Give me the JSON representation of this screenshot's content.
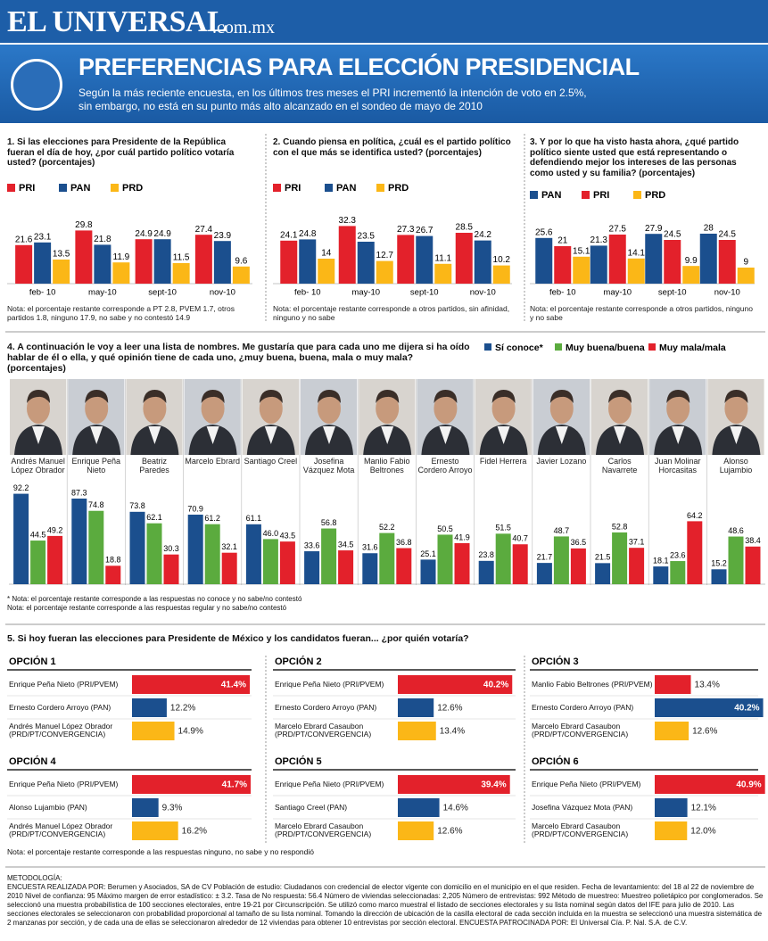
{
  "header": {
    "logo": "EL UNIVERSAL",
    "logo_domain": ".com.mx",
    "title": "PREFERENCIAS PARA ELECCIÓN PRESIDENCIAL",
    "subtitle_lines": [
      "Según la más reciente encuesta, en los últimos tres meses el PRI incrementó la intención de voto en 2.5%,",
      "sin embargo, no está en su punto más alto alcanzado en el sondeo de mayo de 2010"
    ]
  },
  "chart_data": [
    {
      "type": "bar",
      "title": "1. Si las elecciones para Presidente de la República fueran el día de hoy, ¿por cuál partido político votaría usted? (porcentajes)",
      "categories": [
        "feb- 10",
        "may-10",
        "sept-10",
        "nov-10"
      ],
      "ylim": [
        0,
        35
      ],
      "series": [
        {
          "name": "PRI",
          "color": "#e3212b",
          "values": [
            21.6,
            29.8,
            24.9,
            27.4
          ]
        },
        {
          "name": "PAN",
          "color": "#1b4f8e",
          "values": [
            23.1,
            21.8,
            24.9,
            23.9
          ]
        },
        {
          "name": "PRD",
          "color": "#fbb717",
          "values": [
            13.5,
            11.9,
            11.5,
            9.6
          ]
        }
      ],
      "note": "Nota: el porcentaje restante corresponde a PT 2.8, PVEM 1.7, otros partidos 1.8, ninguno 17.9, no sabe y no contestó 14.9"
    },
    {
      "type": "bar",
      "title": "2. Cuando piensa en política, ¿cuál es el partido político con el que más se identifica usted? (porcentajes)",
      "categories": [
        "feb- 10",
        "may-10",
        "sept-10",
        "nov-10"
      ],
      "ylim": [
        0,
        35
      ],
      "series": [
        {
          "name": "PRI",
          "color": "#e3212b",
          "values": [
            24.1,
            32.3,
            27.3,
            28.5
          ]
        },
        {
          "name": "PAN",
          "color": "#1b4f8e",
          "values": [
            24.8,
            23.5,
            26.7,
            24.2
          ]
        },
        {
          "name": "PRD",
          "color": "#fbb717",
          "values": [
            14,
            12.7,
            11.1,
            10.2
          ]
        }
      ],
      "note": "Nota: el porcentaje restante corresponde a otros partidos, sin afinidad, ninguno y no sabe"
    },
    {
      "type": "bar",
      "title": "3.  Y por lo que ha visto hasta ahora, ¿qué partido político siente usted que está representando o defendiendo mejor los intereses de las personas como usted y su familia? (porcentajes)",
      "categories": [
        "feb- 10",
        "may-10",
        "sept-10",
        "nov-10"
      ],
      "ylim": [
        0,
        35
      ],
      "series": [
        {
          "name": "PAN",
          "color": "#1b4f8e",
          "values": [
            25.6,
            21.3,
            27.9,
            28
          ]
        },
        {
          "name": "PRI",
          "color": "#e3212b",
          "values": [
            21,
            27.5,
            24.5,
            24.5
          ]
        },
        {
          "name": "PRD",
          "color": "#fbb717",
          "values": [
            15.1,
            14.1,
            9.9,
            9
          ]
        }
      ],
      "note": "Nota: el porcentaje restante corresponde a otros partidos, ninguno y no sabe"
    },
    {
      "type": "bar",
      "title": "4.  A continuación le voy a leer una lista de nombres. Me gustaría que para cada uno me dijera si ha oído hablar de él o ella, y qué opinión tiene de cada uno, ¿muy buena, buena, mala o muy mala? (porcentajes)",
      "categories": [
        "Andrés Manuel López Obrador",
        "Enrique Peña Nieto",
        "Beatriz Paredes",
        "Marcelo Ebrard",
        "Santiago Creel",
        "Josefina Vázquez Mota",
        "Manlio Fabio Beltrones",
        "Ernesto Cordero Arroyo",
        "Fidel Herrera",
        "Javier Lozano",
        "Carlos Navarrete",
        "Juan Molinar Horcasitas",
        "Alonso Lujambio"
      ],
      "ylim": [
        0,
        100
      ],
      "series": [
        {
          "name": "Sí conoce*",
          "color": "#1b4f8e",
          "values": [
            92.2,
            87.3,
            73.8,
            70.9,
            61.1,
            33.6,
            31.6,
            25.1,
            23.8,
            21.7,
            21.5,
            18.1,
            15.2
          ],
          "value_labels": [
            "92.2",
            "87.3",
            "73.8",
            "70.9",
            "61.1",
            "33.6",
            "31.6",
            "25.1",
            "23.8",
            "21.7",
            "21.5",
            "18.1",
            "15.2"
          ]
        },
        {
          "name": "Muy buena/buena",
          "color": "#5bab3e",
          "values": [
            44.5,
            74.8,
            62.1,
            61.2,
            46,
            56.8,
            52.2,
            50.5,
            51.5,
            48.7,
            52.8,
            23.6,
            48.6
          ],
          "value_labels": [
            "44.5",
            "74.8",
            "62.1",
            "61.2",
            "46.0",
            "56.8",
            "52.2",
            "50.5",
            "51.5",
            "48.7",
            "52.8",
            "23.6",
            "48.6"
          ]
        },
        {
          "name": "Muy mala/mala",
          "color": "#e3212b",
          "values": [
            49.2,
            18.8,
            30.3,
            32.1,
            43.5,
            34.5,
            36.8,
            41.9,
            40.7,
            36.5,
            37.1,
            64.2,
            38.4
          ],
          "value_labels": [
            "49.2",
            "18.8",
            "30.3",
            "32.1",
            "43.5",
            "34.5",
            "36.8",
            "41.9",
            "40.7",
            "36.5",
            "37.1",
            "64.2",
            "38.4"
          ]
        }
      ],
      "notes": [
        "* Nota: el porcentaje restante corresponde a las respuestas no conoce y no sabe/no contestó",
        "Nota: el porcentaje restante corresponde a las respuestas regular y no sabe/no contestó"
      ]
    },
    {
      "type": "hbar",
      "title": "OPCIÓN 1",
      "xlim": [
        0,
        42
      ],
      "categories": [
        "Enrique Peña Nieto (PRI/PVEM)",
        "Ernesto Cordero Arroyo (PAN)",
        "Andrés Manuel López Obrador (PRD/PT/CONVERGENCIA)"
      ],
      "values": [
        41.4,
        12.2,
        14.9
      ],
      "value_labels": [
        "41.4%",
        "12.2%",
        "14.9%"
      ],
      "colors": [
        "#e3212b",
        "#1b4f8e",
        "#fbb717"
      ]
    },
    {
      "type": "hbar",
      "title": "OPCIÓN 2",
      "xlim": [
        0,
        42
      ],
      "categories": [
        "Enrique Peña Nieto (PRI/PVEM)",
        "Ernesto Cordero Arroyo (PAN)",
        "Marcelo Ebrard Casaubon (PRD/PT/CONVERGENCIA)"
      ],
      "values": [
        40.2,
        12.6,
        13.4
      ],
      "value_labels": [
        "40.2%",
        "12.6%",
        "13.4%"
      ],
      "colors": [
        "#e3212b",
        "#1b4f8e",
        "#fbb717"
      ]
    },
    {
      "type": "hbar",
      "title": "OPCIÓN 3",
      "xlim": [
        0,
        42
      ],
      "categories": [
        "Manlio Fabio Beltrones (PRI/PVEM)",
        "Ernesto Cordero Arroyo (PAN)",
        "Marcelo Ebrard Casaubon (PRD/PT/CONVERGENCIA)"
      ],
      "values": [
        13.4,
        40.2,
        12.6
      ],
      "value_labels": [
        "13.4%",
        "40.2%",
        "12.6%"
      ],
      "colors": [
        "#e3212b",
        "#1b4f8e",
        "#fbb717"
      ]
    },
    {
      "type": "hbar",
      "title": "OPCIÓN 4",
      "xlim": [
        0,
        42
      ],
      "categories": [
        "Enrique Peña Nieto (PRI/PVEM)",
        "Alonso Lujambio (PAN)",
        "Andrés Manuel López Obrador (PRD/PT/CONVERGENCIA)"
      ],
      "values": [
        41.7,
        9.3,
        16.2
      ],
      "value_labels": [
        "41.7%",
        "9.3%",
        "16.2%"
      ],
      "colors": [
        "#e3212b",
        "#1b4f8e",
        "#fbb717"
      ]
    },
    {
      "type": "hbar",
      "title": "OPCIÓN 5",
      "xlim": [
        0,
        42
      ],
      "categories": [
        "Enrique Peña Nieto (PRI/PVEM)",
        "Santiago Creel (PAN)",
        "Marcelo Ebrard Casaubon (PRD/PT/CONVERGENCIA)"
      ],
      "values": [
        39.4,
        14.6,
        12.6
      ],
      "value_labels": [
        "39.4%",
        "14.6%",
        "12.6%"
      ],
      "colors": [
        "#e3212b",
        "#1b4f8e",
        "#fbb717"
      ]
    },
    {
      "type": "hbar",
      "title": "OPCIÓN 6",
      "xlim": [
        0,
        42
      ],
      "categories": [
        "Enrique Peña Nieto (PRI/PVEM)",
        "Josefina Vázquez Mota (PAN)",
        "Marcelo Ebrard Casaubon (PRD/PT/CONVERGENCIA)"
      ],
      "values": [
        40.9,
        12.1,
        12
      ],
      "value_labels": [
        "40.9%",
        "12.1%",
        "12.0%"
      ],
      "colors": [
        "#e3212b",
        "#1b4f8e",
        "#fbb717"
      ]
    }
  ],
  "section5": {
    "title": "5. Si hoy fueran las elecciones para Presidente de México y los candidatos fueran... ¿por quién votaría?",
    "note": "Nota: el porcentaje restante corresponde a las respuestas ninguno, no sabe y no respondió"
  },
  "methodology": {
    "title": "METODOLOGÍA:",
    "text": "ENCUESTA REALIZADA POR: Berumen y Asociados, SA de CV Población de estudio: Ciudadanos con credencial de elector vigente con domicilio en el municipio en el que residen. Fecha de levantamiento: del 18 al 22 de noviembre de 2010 Nivel de confianza: 95 Máximo margen de error estadístico: ± 3.2. Tasa de No respuesta: 56.4 Número de viviendas seleccionadas: 2,205 Número de entrevistas: 992 Método de muestreo: Muestreo polietápico por conglomerados. Se seleccionó una muestra probabilística de 100 secciones electorales, entre 19-21 por Circunscripción. Se utilizó como marco muestral el listado de secciones electorales y su lista nominal según datos del IFE para julio de 2010. Las secciones electorales se seleccionaron con probabilidad proporcional al tamaño de su lista nominal. Tomando la dirección de ubicación de la casilla electoral de cada sección incluida en la muestra se seleccionó una muestra sistemática de 2 manzanas por sección, y de cada una de ellas se seleccionaron alrededor de 12 viviendas para obtener 10 entrevistas por sección electoral. ENCUESTA PATROCINADA POR: El Universal Cía. P. Nal. S.A. de C.V."
  }
}
